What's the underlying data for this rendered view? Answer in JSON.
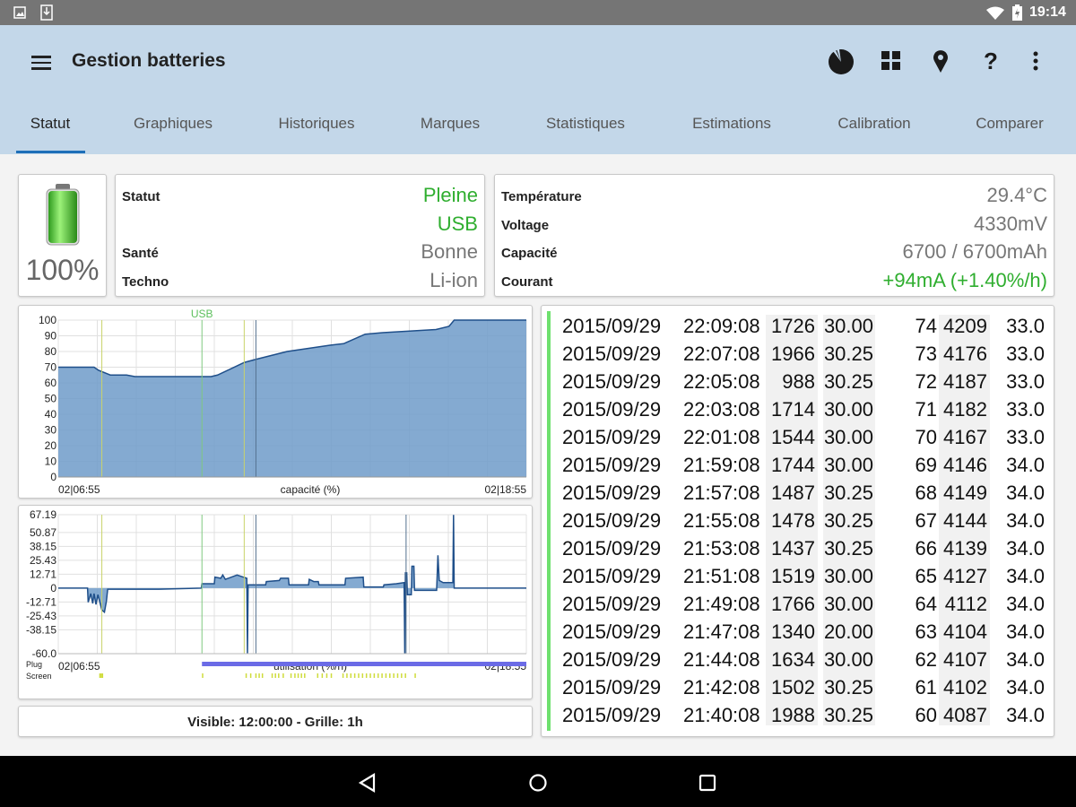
{
  "status_bar": {
    "time": "19:14",
    "icons": [
      "image-icon",
      "download-icon",
      "wifi-icon",
      "battery-charging-icon"
    ]
  },
  "app_bar": {
    "title": "Gestion batteries",
    "icons": [
      "menu-icon",
      "pie-chart-icon",
      "grid-icon",
      "location-pin-icon",
      "help-icon",
      "more-vert-icon"
    ]
  },
  "tabs": [
    {
      "label": "Statut",
      "active": true
    },
    {
      "label": "Graphiques"
    },
    {
      "label": "Historiques"
    },
    {
      "label": "Marques"
    },
    {
      "label": "Statistiques"
    },
    {
      "label": "Estimations"
    },
    {
      "label": "Calibration"
    },
    {
      "label": "Comparer"
    }
  ],
  "battery": {
    "percent": "100%",
    "level": 1.0
  },
  "status": [
    {
      "label": "Statut",
      "value": "Pleine",
      "color": "green"
    },
    {
      "label": "",
      "value": "USB",
      "color": "green"
    },
    {
      "label": "Santé",
      "value": "Bonne"
    },
    {
      "label": "Techno",
      "value": "Li-ion"
    }
  ],
  "details": [
    {
      "label": "Température",
      "value": "29.4°C"
    },
    {
      "label": "Voltage",
      "value": "4330mV"
    },
    {
      "label": "Capacité",
      "value": "6700 / 6700mAh"
    },
    {
      "label": "Courant",
      "value": "+94mA (+1.40%/h)",
      "color": "green"
    }
  ],
  "chart_data": [
    {
      "type": "area",
      "xlabel": "capacité (%)",
      "x_start_label": "02|06:55",
      "x_end_label": "02|18:55",
      "x_range": [
        "06:55",
        "18:55"
      ],
      "ylim": [
        0,
        100
      ],
      "yticks": [
        0,
        10,
        20,
        30,
        40,
        50,
        60,
        70,
        80,
        90,
        100
      ],
      "grid": true,
      "color": "#6e9bc9",
      "marker_label": "USB",
      "markers": [
        {
          "time": "08:02",
          "color": "#c9d36a"
        },
        {
          "time": "10:36",
          "color": "#7fc97f"
        },
        {
          "time": "11:41",
          "color": "#c9d36a"
        },
        {
          "time": "11:59",
          "color": "#54718f"
        }
      ],
      "points": [
        [
          "06:55",
          70
        ],
        [
          "07:50",
          70
        ],
        [
          "07:57",
          68
        ],
        [
          "08:15",
          65
        ],
        [
          "08:40",
          65
        ],
        [
          "08:53",
          64
        ],
        [
          "10:50",
          64
        ],
        [
          "11:00",
          65
        ],
        [
          "11:41",
          73
        ],
        [
          "11:59",
          75
        ],
        [
          "12:47",
          80
        ],
        [
          "13:53",
          84
        ],
        [
          "14:14",
          85
        ],
        [
          "14:47",
          91
        ],
        [
          "15:14",
          92
        ],
        [
          "15:55",
          93
        ],
        [
          "16:36",
          94
        ],
        [
          "16:56",
          96
        ],
        [
          "17:04",
          100
        ],
        [
          "18:55",
          100
        ]
      ]
    },
    {
      "type": "area",
      "xlabel": "utilisation (%/h)",
      "x_start_label": "02|06:55",
      "x_end_label": "02|18:55",
      "x_range": [
        "06:55",
        "18:55"
      ],
      "ylim": [
        -60,
        67.19
      ],
      "yticks": [
        "67.19",
        "50.87",
        "38.15",
        "25.43",
        "12.71",
        "0",
        "-12.71",
        "-25.43",
        "-38.15",
        "-60.0"
      ],
      "grid": true,
      "color": "#6e9bc9",
      "row_labels": [
        "Plug",
        "Screen"
      ],
      "plug": {
        "from": "10:36",
        "to": "18:55",
        "color": "#6b6be6"
      },
      "screen": [
        "07:58",
        "08:00",
        "08:02",
        "10:36",
        "11:43",
        "11:50",
        "11:58",
        "12:03",
        "12:08",
        "12:23",
        "12:28",
        "12:33",
        "12:40",
        "12:52",
        "12:58",
        "13:03",
        "13:08",
        "13:13",
        "13:33",
        "13:40",
        "13:47",
        "13:54",
        "14:12",
        "14:18",
        "14:24",
        "14:30",
        "14:36",
        "14:42",
        "14:48",
        "14:54",
        "15:00",
        "15:06",
        "15:12",
        "15:18",
        "15:24",
        "15:30",
        "15:36",
        "15:42",
        "15:48",
        "16:03"
      ],
      "markers": [
        {
          "time": "08:02",
          "color": "#c9d36a"
        },
        {
          "time": "10:36",
          "color": "#7fc97f"
        },
        {
          "time": "11:41",
          "color": "#c9d36a"
        },
        {
          "time": "11:59",
          "color": "#54718f"
        },
        {
          "time": "15:50",
          "color": "#54718f"
        }
      ],
      "points": [
        [
          "06:55",
          0
        ],
        [
          "07:40",
          0
        ],
        [
          "07:41",
          -13
        ],
        [
          "07:45",
          -5
        ],
        [
          "07:48",
          -14
        ],
        [
          "07:50",
          -5
        ],
        [
          "07:53",
          -15
        ],
        [
          "07:56",
          -6
        ],
        [
          "08:02",
          -20
        ],
        [
          "08:06",
          -22
        ],
        [
          "08:09",
          -12
        ],
        [
          "08:11",
          -1
        ],
        [
          "09:30",
          -1
        ],
        [
          "10:35",
          0
        ],
        [
          "10:36",
          4
        ],
        [
          "10:55",
          4
        ],
        [
          "10:56",
          10
        ],
        [
          "11:05",
          9
        ],
        [
          "11:08",
          12
        ],
        [
          "11:12",
          8
        ],
        [
          "11:30",
          12
        ],
        [
          "11:40",
          10
        ],
        [
          "11:45",
          9
        ],
        [
          "11:46",
          -60
        ],
        [
          "11:47",
          3
        ],
        [
          "12:14",
          3
        ],
        [
          "12:15",
          6
        ],
        [
          "12:35",
          7
        ],
        [
          "12:37",
          9
        ],
        [
          "12:49",
          9
        ],
        [
          "12:50",
          3
        ],
        [
          "13:20",
          3
        ],
        [
          "13:21",
          8
        ],
        [
          "13:28",
          6
        ],
        [
          "13:35",
          6
        ],
        [
          "13:36",
          3
        ],
        [
          "14:16",
          3
        ],
        [
          "14:17",
          9
        ],
        [
          "14:44",
          10
        ],
        [
          "14:45",
          1
        ],
        [
          "15:15",
          1
        ],
        [
          "15:16",
          3
        ],
        [
          "15:35",
          4
        ],
        [
          "15:47",
          5
        ],
        [
          "15:48",
          -60
        ],
        [
          "15:49",
          14
        ],
        [
          "15:51",
          14
        ],
        [
          "15:52",
          -6
        ],
        [
          "15:58",
          -6
        ],
        [
          "15:59",
          20
        ],
        [
          "16:02",
          20
        ],
        [
          "16:03",
          -2
        ],
        [
          "16:37",
          -2
        ],
        [
          "16:39",
          30
        ],
        [
          "16:41",
          7
        ],
        [
          "16:47",
          5
        ],
        [
          "17:02",
          5
        ],
        [
          "17:03",
          67
        ],
        [
          "17:04",
          0
        ],
        [
          "18:55",
          0
        ]
      ]
    }
  ],
  "visible_button": "Visible: 12:00:00 - Grille: 1h",
  "history": [
    [
      "2015/09/29",
      "22:09:08",
      "1726",
      "30.00",
      "74",
      "4209",
      "33.0"
    ],
    [
      "2015/09/29",
      "22:07:08",
      "1966",
      "30.25",
      "73",
      "4176",
      "33.0"
    ],
    [
      "2015/09/29",
      "22:05:08",
      "988",
      "30.25",
      "72",
      "4187",
      "33.0"
    ],
    [
      "2015/09/29",
      "22:03:08",
      "1714",
      "30.00",
      "71",
      "4182",
      "33.0"
    ],
    [
      "2015/09/29",
      "22:01:08",
      "1544",
      "30.00",
      "70",
      "4167",
      "33.0"
    ],
    [
      "2015/09/29",
      "21:59:08",
      "1744",
      "30.00",
      "69",
      "4146",
      "34.0"
    ],
    [
      "2015/09/29",
      "21:57:08",
      "1487",
      "30.25",
      "68",
      "4149",
      "34.0"
    ],
    [
      "2015/09/29",
      "21:55:08",
      "1478",
      "30.25",
      "67",
      "4144",
      "34.0"
    ],
    [
      "2015/09/29",
      "21:53:08",
      "1437",
      "30.25",
      "66",
      "4139",
      "34.0"
    ],
    [
      "2015/09/29",
      "21:51:08",
      "1519",
      "30.00",
      "65",
      "4127",
      "34.0"
    ],
    [
      "2015/09/29",
      "21:49:08",
      "1766",
      "30.00",
      "64",
      "4112",
      "34.0"
    ],
    [
      "2015/09/29",
      "21:47:08",
      "1340",
      "20.00",
      "63",
      "4104",
      "34.0"
    ],
    [
      "2015/09/29",
      "21:44:08",
      "1634",
      "30.00",
      "62",
      "4107",
      "34.0"
    ],
    [
      "2015/09/29",
      "21:42:08",
      "1502",
      "30.25",
      "61",
      "4102",
      "34.0"
    ],
    [
      "2015/09/29",
      "21:40:08",
      "1988",
      "30.25",
      "60",
      "4087",
      "34.0"
    ]
  ],
  "nav": [
    "back-icon",
    "home-icon",
    "recents-icon"
  ]
}
